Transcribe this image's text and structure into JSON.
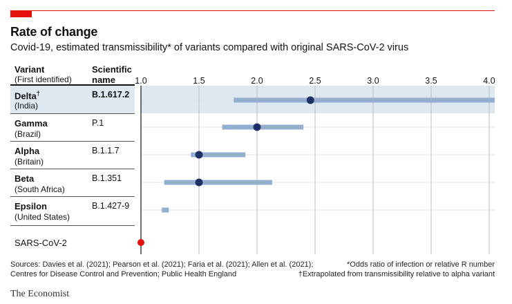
{
  "header": {
    "title": "Rate of change",
    "subtitle": "Covid-19, estimated transmissibility* of variants compared with original SARS-CoV-2 virus"
  },
  "columns": {
    "variant": "Variant",
    "variant_sub": "(First identified)",
    "scientific": "Scientific",
    "scientific_sub": "name"
  },
  "chart_data": {
    "type": "range",
    "title": "Rate of change",
    "subtitle": "Covid-19, estimated transmissibility* of variants compared with original SARS-CoV-2 virus",
    "xlim": [
      1.0,
      4.0
    ],
    "x_ticks": [
      "1.0",
      "1.5",
      "2.0",
      "2.5",
      "3.0",
      "3.5",
      "4.0"
    ],
    "grid": true,
    "series": [
      {
        "variant": "Delta",
        "dagger": "†",
        "country": "(India)",
        "scientific_name": "B.1.617.2",
        "low": 1.8,
        "high": 4.05,
        "point": 2.46,
        "highlight": true
      },
      {
        "variant": "Gamma",
        "dagger": "",
        "country": "(Brazil)",
        "scientific_name": "P.1",
        "low": 1.7,
        "high": 2.4,
        "point": 2.0,
        "highlight": false
      },
      {
        "variant": "Alpha",
        "dagger": "",
        "country": "(Britain)",
        "scientific_name": "B.1.1.7",
        "low": 1.43,
        "high": 1.9,
        "point": 1.5,
        "highlight": false
      },
      {
        "variant": "Beta",
        "dagger": "",
        "country": "(South Africa)",
        "scientific_name": "B.1.351",
        "low": 1.2,
        "high": 2.13,
        "point": 1.5,
        "highlight": false
      },
      {
        "variant": "Epsilon",
        "dagger": "",
        "country": "(United States)",
        "scientific_name": "B.1.427-9",
        "low": 1.18,
        "high": 1.24,
        "point": null,
        "highlight": false
      }
    ],
    "baseline": {
      "label": "SARS-CoV-2",
      "value": 1.0
    },
    "colors": {
      "range_bar": "#94aed0",
      "point": "#1a3268",
      "baseline_point": "#e3120b",
      "gridline": "#c8c8c8",
      "highlight_row": "#dde8f0"
    }
  },
  "footer": {
    "sources_line1": "Sources: Davies et al. (2021); Pearson et al. (2021); Faria et al. (2021); Allen et al. (2021);",
    "sources_line2": "Centres for Disease Control and Prevention; Public Health England",
    "note1": "*Odds ratio of infection or relative R number",
    "note2": "†Extrapolated from transmissibility relative to alpha variant",
    "brand": "The Economist"
  }
}
